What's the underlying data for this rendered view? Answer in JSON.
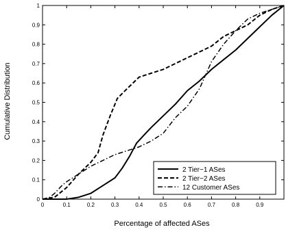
{
  "chart_data": {
    "type": "line",
    "title": "",
    "xlabel": "Percentage of affected ASes",
    "ylabel": "Cumulative Distribution",
    "xlim": [
      0,
      1
    ],
    "ylim": [
      0,
      1
    ],
    "x_ticks": [
      "0",
      "0.1",
      "0.2",
      "0.3",
      "0.4",
      "0.5",
      "0.6",
      "0.7",
      "0.8",
      "0.9"
    ],
    "y_ticks": [
      "0",
      "0.1",
      "0.2",
      "0.3",
      "0.4",
      "0.5",
      "0.6",
      "0.7",
      "0.8",
      "0.9",
      "1"
    ],
    "grid": false,
    "legend_position": "lower-right",
    "series": [
      {
        "name": "2 Tier−1 ASes",
        "line_style": "solid",
        "color": "#000000",
        "points": [
          [
            0,
            0
          ],
          [
            0.05,
            0
          ],
          [
            0.1,
            0
          ],
          [
            0.15,
            0.01
          ],
          [
            0.2,
            0.03
          ],
          [
            0.25,
            0.07
          ],
          [
            0.3,
            0.11
          ],
          [
            0.33,
            0.16
          ],
          [
            0.36,
            0.22
          ],
          [
            0.39,
            0.29
          ],
          [
            0.42,
            0.33
          ],
          [
            0.45,
            0.37
          ],
          [
            0.5,
            0.43
          ],
          [
            0.55,
            0.49
          ],
          [
            0.6,
            0.56
          ],
          [
            0.65,
            0.61
          ],
          [
            0.7,
            0.67
          ],
          [
            0.75,
            0.72
          ],
          [
            0.8,
            0.77
          ],
          [
            0.85,
            0.83
          ],
          [
            0.9,
            0.89
          ],
          [
            0.95,
            0.95
          ],
          [
            1,
            1
          ]
        ]
      },
      {
        "name": "2 Tier−2 ASes",
        "line_style": "dashed",
        "color": "#000000",
        "points": [
          [
            0,
            0
          ],
          [
            0.05,
            0.01
          ],
          [
            0.1,
            0.06
          ],
          [
            0.15,
            0.13
          ],
          [
            0.2,
            0.19
          ],
          [
            0.23,
            0.24
          ],
          [
            0.25,
            0.33
          ],
          [
            0.28,
            0.43
          ],
          [
            0.31,
            0.52
          ],
          [
            0.35,
            0.57
          ],
          [
            0.4,
            0.63
          ],
          [
            0.45,
            0.65
          ],
          [
            0.5,
            0.67
          ],
          [
            0.55,
            0.7
          ],
          [
            0.6,
            0.73
          ],
          [
            0.65,
            0.76
          ],
          [
            0.7,
            0.79
          ],
          [
            0.75,
            0.84
          ],
          [
            0.8,
            0.87
          ],
          [
            0.85,
            0.9
          ],
          [
            0.9,
            0.95
          ],
          [
            0.95,
            0.98
          ],
          [
            1,
            1
          ]
        ]
      },
      {
        "name": "12 Customer ASes",
        "line_style": "dashdot",
        "color": "#000000",
        "points": [
          [
            0,
            0
          ],
          [
            0.03,
            0.01
          ],
          [
            0.05,
            0.03
          ],
          [
            0.08,
            0.07
          ],
          [
            0.1,
            0.09
          ],
          [
            0.15,
            0.13
          ],
          [
            0.2,
            0.17
          ],
          [
            0.25,
            0.2
          ],
          [
            0.3,
            0.23
          ],
          [
            0.35,
            0.25
          ],
          [
            0.4,
            0.27
          ],
          [
            0.45,
            0.3
          ],
          [
            0.5,
            0.34
          ],
          [
            0.55,
            0.42
          ],
          [
            0.6,
            0.48
          ],
          [
            0.65,
            0.57
          ],
          [
            0.7,
            0.71
          ],
          [
            0.75,
            0.8
          ],
          [
            0.8,
            0.87
          ],
          [
            0.85,
            0.93
          ],
          [
            0.9,
            0.96
          ],
          [
            0.95,
            0.98
          ],
          [
            1,
            1
          ]
        ]
      }
    ]
  }
}
